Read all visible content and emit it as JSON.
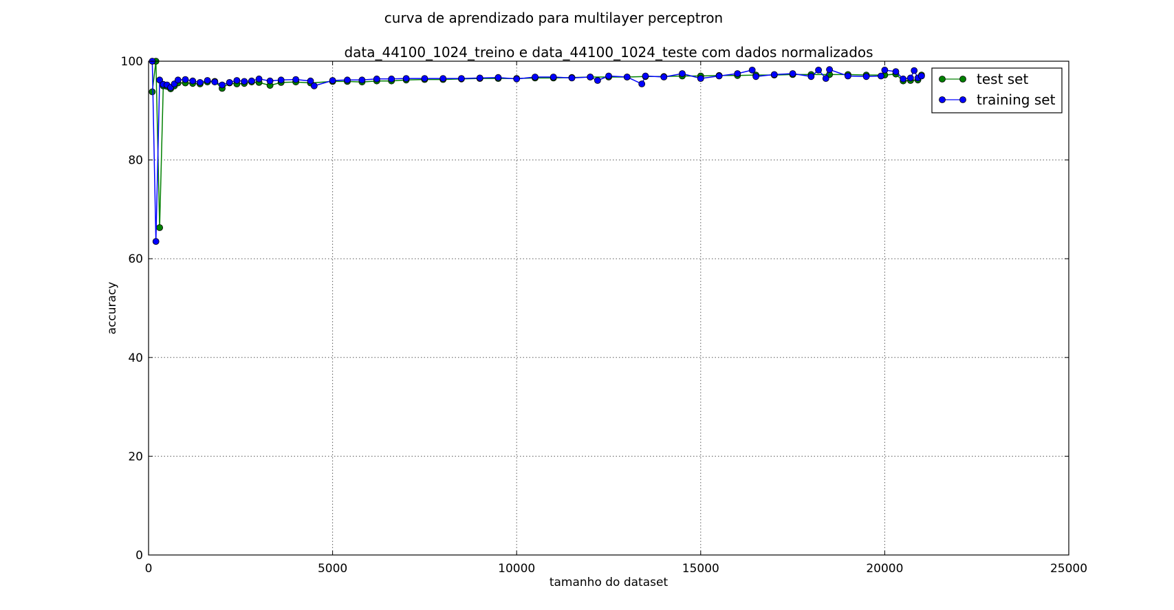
{
  "chart_data": {
    "type": "line",
    "title": "curva de aprendizado para multilayer perceptron",
    "subtitle": "data_44100_1024_treino e data_44100_1024_teste com dados normalizados",
    "xlabel": "tamanho do dataset",
    "ylabel": "accuracy",
    "xlim": [
      0,
      25000
    ],
    "ylim": [
      0,
      100
    ],
    "x_ticks": [
      0,
      5000,
      10000,
      15000,
      20000,
      25000
    ],
    "y_ticks": [
      0,
      20,
      40,
      60,
      80,
      100
    ],
    "grid": true,
    "legend_position": "top-right",
    "series": [
      {
        "name": "test set",
        "color": "#008000",
        "marker": "circle",
        "x": [
          100,
          200,
          300,
          400,
          500,
          600,
          700,
          800,
          1000,
          1200,
          1400,
          1600,
          1800,
          2000,
          2200,
          2400,
          2600,
          2800,
          3000,
          3300,
          3600,
          4000,
          4400,
          5000,
          5400,
          5800,
          6200,
          6600,
          7000,
          7500,
          8000,
          8500,
          9000,
          9500,
          10000,
          10500,
          11000,
          11500,
          12000,
          12500,
          13000,
          13500,
          14000,
          14500,
          15000,
          15500,
          16000,
          16500,
          17000,
          17500,
          18000,
          18500,
          19000,
          19500,
          20000,
          20300,
          20500,
          20700,
          20900,
          21000
        ],
        "values": [
          93.8,
          100,
          66.3,
          95.0,
          94.9,
          94.4,
          95.0,
          95.6,
          95.6,
          95.5,
          95.4,
          95.8,
          95.9,
          94.5,
          95.6,
          95.4,
          95.5,
          95.8,
          95.7,
          95.1,
          95.7,
          95.8,
          95.6,
          95.9,
          95.9,
          95.8,
          96.0,
          96.0,
          96.2,
          96.3,
          96.3,
          96.4,
          96.5,
          96.5,
          96.5,
          96.6,
          96.6,
          96.7,
          96.8,
          96.8,
          96.8,
          96.9,
          96.9,
          97.0,
          97.0,
          97.1,
          97.1,
          97.2,
          97.2,
          97.3,
          97.3,
          97.3,
          97.3,
          97.2,
          97.2,
          97.4,
          96.0,
          96.1,
          96.2,
          97.2
        ]
      },
      {
        "name": "training set",
        "color": "#0000ff",
        "marker": "circle",
        "x": [
          100,
          200,
          300,
          400,
          500,
          600,
          700,
          800,
          1000,
          1200,
          1400,
          1600,
          1800,
          2000,
          2200,
          2400,
          2600,
          2800,
          3000,
          3300,
          3600,
          4000,
          4400,
          4500,
          5000,
          5400,
          5800,
          6200,
          6600,
          7000,
          7500,
          8000,
          8500,
          9000,
          9500,
          10000,
          10500,
          11000,
          11500,
          12000,
          12200,
          12500,
          13000,
          13400,
          13500,
          14000,
          14500,
          15000,
          15500,
          16000,
          16400,
          16500,
          17000,
          17500,
          18000,
          18200,
          18400,
          18500,
          19000,
          19500,
          19900,
          20000,
          20300,
          20500,
          20700,
          20800,
          20900,
          21000
        ],
        "values": [
          100,
          63.5,
          96.2,
          95.3,
          95.2,
          94.7,
          95.4,
          96.2,
          96.3,
          96.0,
          95.7,
          96.1,
          95.8,
          95.2,
          95.7,
          96.1,
          95.9,
          96.0,
          96.4,
          96.0,
          96.2,
          96.3,
          96.0,
          95.0,
          96.1,
          96.2,
          96.2,
          96.4,
          96.4,
          96.5,
          96.5,
          96.5,
          96.5,
          96.6,
          96.7,
          96.4,
          96.8,
          96.8,
          96.6,
          96.8,
          96.1,
          97.0,
          96.8,
          95.4,
          97.0,
          96.8,
          97.5,
          96.5,
          97.0,
          97.5,
          98.2,
          96.9,
          97.3,
          97.5,
          96.9,
          98.2,
          96.5,
          98.3,
          97.0,
          96.9,
          97.0,
          98.2,
          97.9,
          96.4,
          96.6,
          98.1,
          96.6,
          97.0
        ]
      }
    ]
  }
}
